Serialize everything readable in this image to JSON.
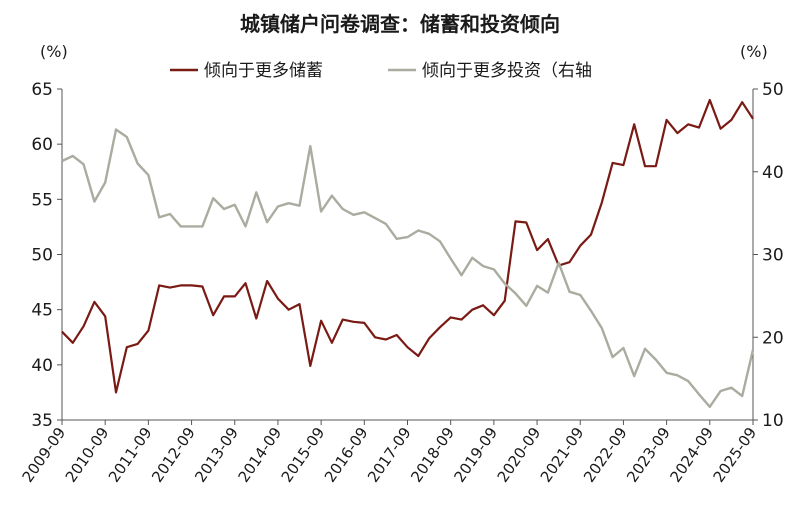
{
  "chart_data": {
    "type": "line",
    "title": "城镇储户问卷调查：储蓄和投资倾向",
    "left_axis": {
      "unit": "(%)",
      "ylim": [
        35,
        65
      ],
      "ticks": [
        35,
        40,
        45,
        50,
        55,
        60,
        65
      ]
    },
    "right_axis": {
      "unit": "(%)",
      "ylim": [
        10,
        50
      ],
      "ticks": [
        10,
        20,
        30,
        40,
        50
      ]
    },
    "x_ticks": [
      "2009-09",
      "2010-09",
      "2011-09",
      "2012-09",
      "2013-09",
      "2014-09",
      "2015-09",
      "2016-09",
      "2017-09",
      "2018-09",
      "2019-09",
      "2020-09",
      "2021-09",
      "2022-09",
      "2023-09",
      "2024-09",
      "2025-09"
    ],
    "legend_position": "top",
    "series": [
      {
        "name": "倾向于更多储蓄",
        "axis": "left",
        "color": "#7a1a14",
        "x": [
          2009.67,
          2009.92,
          2010.17,
          2010.42,
          2010.67,
          2010.92,
          2011.17,
          2011.42,
          2011.67,
          2011.92,
          2012.17,
          2012.42,
          2012.67,
          2012.92,
          2013.17,
          2013.42,
          2013.67,
          2013.92,
          2014.17,
          2014.42,
          2014.67,
          2014.92,
          2015.17,
          2015.42,
          2015.67,
          2015.92,
          2016.17,
          2016.42,
          2016.67,
          2016.92,
          2017.17,
          2017.42,
          2017.67,
          2017.92,
          2018.17,
          2018.42,
          2018.67,
          2018.92,
          2019.17,
          2019.42,
          2019.67,
          2019.92,
          2020.17,
          2020.42,
          2020.67,
          2020.92,
          2021.17,
          2021.42,
          2021.67,
          2021.92,
          2022.17,
          2022.42,
          2022.67,
          2022.92,
          2023.17,
          2023.42,
          2023.67,
          2023.92,
          2024.17,
          2024.42,
          2024.67,
          2024.92,
          2025.17,
          2025.42,
          2025.67
        ],
        "values": [
          43.0,
          42.0,
          43.5,
          45.7,
          44.4,
          37.5,
          41.6,
          41.9,
          43.1,
          47.2,
          47.0,
          47.2,
          47.2,
          47.1,
          44.5,
          46.2,
          46.2,
          47.4,
          44.2,
          47.6,
          46.0,
          45.0,
          45.5,
          39.9,
          44.0,
          42.0,
          44.1,
          43.9,
          43.8,
          42.5,
          42.3,
          42.7,
          41.6,
          40.8,
          42.4,
          43.4,
          44.3,
          44.1,
          45.0,
          45.4,
          44.5,
          45.8,
          53.0,
          52.9,
          50.4,
          51.4,
          49.0,
          49.3,
          50.8,
          51.8,
          54.7,
          58.3,
          58.1,
          61.8,
          58.0,
          58.0,
          62.2,
          61.0,
          61.8,
          61.5,
          64.0,
          61.4,
          62.2,
          63.8,
          62.3
        ]
      },
      {
        "name": "倾向于更多投资（右轴",
        "axis": "right",
        "color": "#a8ad9f",
        "x": [
          2009.67,
          2009.92,
          2010.17,
          2010.42,
          2010.67,
          2010.92,
          2011.17,
          2011.42,
          2011.67,
          2011.92,
          2012.17,
          2012.42,
          2012.67,
          2012.92,
          2013.17,
          2013.42,
          2013.67,
          2013.92,
          2014.17,
          2014.42,
          2014.67,
          2014.92,
          2015.17,
          2015.42,
          2015.67,
          2015.92,
          2016.17,
          2016.42,
          2016.67,
          2016.92,
          2017.17,
          2017.42,
          2017.67,
          2017.92,
          2018.17,
          2018.42,
          2018.67,
          2018.92,
          2019.17,
          2019.42,
          2019.67,
          2019.92,
          2020.17,
          2020.42,
          2020.67,
          2020.92,
          2021.17,
          2021.42,
          2021.67,
          2021.92,
          2022.17,
          2022.42,
          2022.67,
          2022.92,
          2023.17,
          2023.42,
          2023.67,
          2023.92,
          2024.17,
          2024.42,
          2024.67,
          2024.92,
          2025.17,
          2025.42,
          2025.67
        ],
        "values": [
          41.3,
          41.9,
          40.9,
          36.4,
          38.7,
          45.1,
          44.2,
          41.0,
          39.6,
          34.5,
          34.9,
          33.4,
          33.4,
          33.4,
          36.8,
          35.5,
          36.0,
          33.4,
          37.5,
          33.9,
          35.8,
          36.2,
          35.9,
          43.1,
          35.2,
          37.1,
          35.5,
          34.8,
          35.1,
          34.4,
          33.7,
          31.9,
          32.1,
          32.9,
          32.5,
          31.6,
          29.5,
          27.5,
          29.6,
          28.6,
          28.2,
          26.5,
          25.3,
          23.8,
          26.2,
          25.4,
          29.0,
          25.5,
          25.1,
          23.2,
          21.1,
          17.6,
          18.7,
          15.3,
          18.6,
          17.3,
          15.7,
          15.4,
          14.7,
          13.1,
          11.6,
          13.5,
          13.9,
          12.9,
          18.5
        ]
      }
    ]
  }
}
